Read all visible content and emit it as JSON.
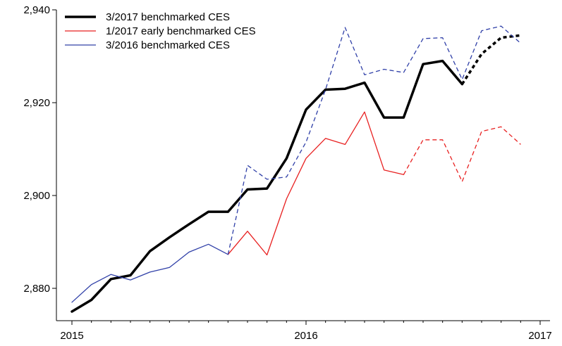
{
  "chart_data": {
    "type": "line",
    "title": "",
    "xlabel": "",
    "ylabel": "",
    "xlim": [
      2015,
      2017
    ],
    "ylim": [
      2873,
      2942
    ],
    "x_ticks": [
      {
        "value": 2015,
        "label": "2015"
      },
      {
        "value": 2016,
        "label": "2016"
      },
      {
        "value": 2017,
        "label": "2017"
      }
    ],
    "y_ticks": [
      {
        "value": 2880,
        "label": "2,880"
      },
      {
        "value": 2900,
        "label": "2,900"
      },
      {
        "value": 2920,
        "label": "2,920"
      },
      {
        "value": 2940,
        "label": "2,940"
      }
    ],
    "legend_position": "top-left",
    "series": [
      {
        "name": "3/2017 benchmarked CES",
        "color": "#000000",
        "solid": [
          [
            2015.0,
            2875.0
          ],
          [
            2015.083,
            2877.5
          ],
          [
            2015.167,
            2882.0
          ],
          [
            2015.25,
            2882.8
          ],
          [
            2015.333,
            2888.0
          ],
          [
            2015.417,
            2891.0
          ],
          [
            2015.5,
            2893.8
          ],
          [
            2015.583,
            2896.5
          ],
          [
            2015.667,
            2896.5
          ],
          [
            2015.75,
            2901.3
          ],
          [
            2015.833,
            2901.5
          ],
          [
            2015.917,
            2908.0
          ],
          [
            2016.0,
            2918.5
          ],
          [
            2016.083,
            2922.8
          ],
          [
            2016.167,
            2923.0
          ],
          [
            2016.25,
            2924.3
          ],
          [
            2016.333,
            2916.8
          ],
          [
            2016.417,
            2916.8
          ],
          [
            2016.5,
            2928.3
          ],
          [
            2016.583,
            2929.0
          ],
          [
            2016.667,
            2924.0
          ]
        ],
        "dashed": [
          [
            2016.667,
            2924.0
          ],
          [
            2016.75,
            2930.5
          ],
          [
            2016.833,
            2934.0
          ],
          [
            2016.917,
            2934.5
          ]
        ]
      },
      {
        "name": "1/2017 early benchmarked CES",
        "color": "#e82020",
        "solid": [
          [
            2015.667,
            2887.3
          ],
          [
            2015.75,
            2892.3
          ],
          [
            2015.833,
            2887.2
          ],
          [
            2015.917,
            2899.3
          ],
          [
            2016.0,
            2908.0
          ],
          [
            2016.083,
            2912.3
          ],
          [
            2016.167,
            2911.0
          ],
          [
            2016.25,
            2918.0
          ],
          [
            2016.333,
            2905.5
          ],
          [
            2016.417,
            2904.5
          ]
        ],
        "dashed": [
          [
            2016.417,
            2904.5
          ],
          [
            2016.5,
            2912.0
          ],
          [
            2016.583,
            2912.0
          ],
          [
            2016.667,
            2903.0
          ],
          [
            2016.75,
            2913.8
          ],
          [
            2016.833,
            2914.8
          ],
          [
            2016.917,
            2911.0
          ]
        ]
      },
      {
        "name": "3/2016 benchmarked CES",
        "color": "#3040a8",
        "solid": [
          [
            2015.0,
            2877.0
          ],
          [
            2015.083,
            2880.8
          ],
          [
            2015.167,
            2883.0
          ],
          [
            2015.25,
            2881.8
          ],
          [
            2015.333,
            2883.5
          ],
          [
            2015.417,
            2884.5
          ],
          [
            2015.5,
            2887.8
          ],
          [
            2015.583,
            2889.5
          ],
          [
            2015.667,
            2887.3
          ]
        ],
        "dashed": [
          [
            2015.667,
            2887.3
          ],
          [
            2015.75,
            2906.5
          ],
          [
            2015.833,
            2903.5
          ],
          [
            2015.917,
            2904.0
          ],
          [
            2016.0,
            2911.5
          ],
          [
            2016.083,
            2922.8
          ],
          [
            2016.167,
            2936.2
          ],
          [
            2016.25,
            2926.0
          ],
          [
            2016.333,
            2927.2
          ],
          [
            2016.417,
            2926.5
          ],
          [
            2016.5,
            2933.8
          ],
          [
            2016.583,
            2934.0
          ],
          [
            2016.667,
            2925.0
          ],
          [
            2016.75,
            2935.5
          ],
          [
            2016.833,
            2936.5
          ],
          [
            2016.917,
            2932.8
          ]
        ]
      }
    ]
  }
}
